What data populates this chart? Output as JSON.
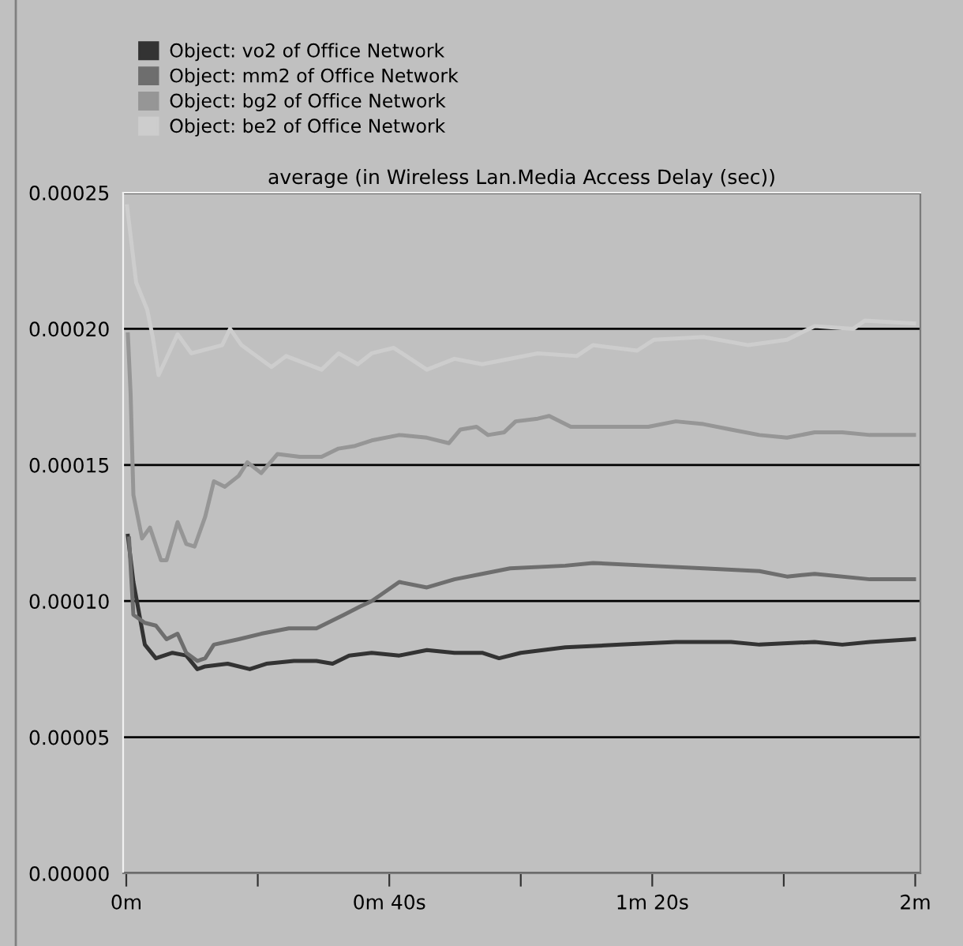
{
  "chart_data": {
    "type": "line",
    "title": "average (in Wireless Lan.Media Access Delay (sec))",
    "series": [
      {
        "name": "Object: vo2 of Office Network",
        "color": "#333333",
        "x": [
          0.004,
          0.018,
          0.047,
          0.075,
          0.117,
          0.152,
          0.18,
          0.2,
          0.257,
          0.313,
          0.355,
          0.425,
          0.482,
          0.523,
          0.565,
          0.622,
          0.692,
          0.762,
          0.832,
          0.902,
          0.945,
          1.0,
          1.113,
          1.253,
          1.393,
          1.533,
          1.605,
          1.745,
          1.815,
          1.885,
          1.997
        ],
        "values": [
          0.000124,
          0.000107,
          8.4e-05,
          7.9e-05,
          8.1e-05,
          8e-05,
          7.5e-05,
          7.6e-05,
          7.7e-05,
          7.5e-05,
          7.7e-05,
          7.8e-05,
          7.8e-05,
          7.7e-05,
          8e-05,
          8.1e-05,
          8e-05,
          8.2e-05,
          8.1e-05,
          8.1e-05,
          7.9e-05,
          8.1e-05,
          8.3e-05,
          8.4e-05,
          8.5e-05,
          8.5e-05,
          8.4e-05,
          8.5e-05,
          8.4e-05,
          8.5e-05,
          8.6e-05
        ]
      },
      {
        "name": "Object: mm2 of Office Network",
        "color": "#6e6e6e",
        "x": [
          0.007,
          0.018,
          0.047,
          0.075,
          0.102,
          0.13,
          0.152,
          0.18,
          0.2,
          0.222,
          0.285,
          0.342,
          0.412,
          0.482,
          0.552,
          0.593,
          0.622,
          0.692,
          0.762,
          0.832,
          0.902,
          0.973,
          1.113,
          1.183,
          1.323,
          1.463,
          1.605,
          1.675,
          1.745,
          1.885,
          1.997
        ],
        "values": [
          0.000123,
          9.5e-05,
          9.2e-05,
          9.1e-05,
          8.6e-05,
          8.8e-05,
          8.1e-05,
          7.8e-05,
          7.9e-05,
          8.4e-05,
          8.6e-05,
          8.8e-05,
          9e-05,
          9e-05,
          9.5e-05,
          9.8e-05,
          0.0001,
          0.000107,
          0.000105,
          0.000108,
          0.00011,
          0.000112,
          0.000113,
          0.000114,
          0.000113,
          0.000112,
          0.000111,
          0.000109,
          0.00011,
          0.000108,
          0.000108
        ]
      },
      {
        "name": "Object: bg2 of Office Network",
        "color": "#969696",
        "x": [
          0.004,
          0.011,
          0.018,
          0.04,
          0.06,
          0.088,
          0.102,
          0.13,
          0.152,
          0.173,
          0.2,
          0.222,
          0.25,
          0.285,
          0.307,
          0.342,
          0.383,
          0.44,
          0.495,
          0.538,
          0.58,
          0.622,
          0.692,
          0.762,
          0.818,
          0.847,
          0.888,
          0.917,
          0.958,
          0.987,
          1.043,
          1.072,
          1.127,
          1.253,
          1.323,
          1.393,
          1.463,
          1.533,
          1.605,
          1.675,
          1.745,
          1.815,
          1.885,
          1.997
        ],
        "values": [
          0.000198,
          0.000176,
          0.000139,
          0.000123,
          0.000127,
          0.000115,
          0.000115,
          0.000129,
          0.000121,
          0.00012,
          0.000131,
          0.000144,
          0.000142,
          0.000146,
          0.000151,
          0.000147,
          0.000154,
          0.000153,
          0.000153,
          0.000156,
          0.000157,
          0.000159,
          0.000161,
          0.00016,
          0.000158,
          0.000163,
          0.000164,
          0.000161,
          0.000162,
          0.000166,
          0.000167,
          0.000168,
          0.000164,
          0.000164,
          0.000164,
          0.000166,
          0.000165,
          0.000163,
          0.000161,
          0.00016,
          0.000162,
          0.000162,
          0.000161,
          0.000161
        ]
      },
      {
        "name": "Object: be2 of Office Network",
        "color": "#cdcdcd",
        "x": [
          0.002,
          0.025,
          0.053,
          0.067,
          0.082,
          0.13,
          0.165,
          0.243,
          0.263,
          0.292,
          0.368,
          0.405,
          0.495,
          0.538,
          0.587,
          0.622,
          0.678,
          0.762,
          0.832,
          0.902,
          1.043,
          1.142,
          1.183,
          1.295,
          1.338,
          1.463,
          1.577,
          1.675,
          1.745,
          1.843,
          1.872,
          1.997
        ],
        "values": [
          0.000245,
          0.000217,
          0.000207,
          0.000197,
          0.000183,
          0.000198,
          0.000191,
          0.000194,
          0.0002,
          0.000194,
          0.000186,
          0.00019,
          0.000185,
          0.000191,
          0.000187,
          0.000191,
          0.000193,
          0.000185,
          0.000189,
          0.000187,
          0.000191,
          0.00019,
          0.000194,
          0.000192,
          0.000196,
          0.000197,
          0.000194,
          0.000196,
          0.000201,
          0.0002,
          0.000203,
          0.000202
        ]
      }
    ],
    "xlim": [
      -0.008,
      2.013
    ],
    "ylim": [
      0,
      0.00025
    ],
    "xticks": [
      {
        "value": 0,
        "label": "0m"
      },
      {
        "value": 0.3333,
        "label": null
      },
      {
        "value": 0.6667,
        "label": "0m 40s"
      },
      {
        "value": 1,
        "label": null
      },
      {
        "value": 1.3333,
        "label": "1m 20s"
      },
      {
        "value": 1.6667,
        "label": null
      },
      {
        "value": 2,
        "label": "2m"
      }
    ],
    "yticks": [
      {
        "value": 0,
        "label": "0.00000"
      },
      {
        "value": 5e-05,
        "label": "0.00005"
      },
      {
        "value": 0.0001,
        "label": "0.00010"
      },
      {
        "value": 0.00015,
        "label": "0.00015"
      },
      {
        "value": 0.0002,
        "label": "0.00020"
      },
      {
        "value": 0.00025,
        "label": "0.00025"
      }
    ],
    "grid": "y",
    "legend": "top left",
    "marker": "none",
    "line_style": "solid"
  }
}
